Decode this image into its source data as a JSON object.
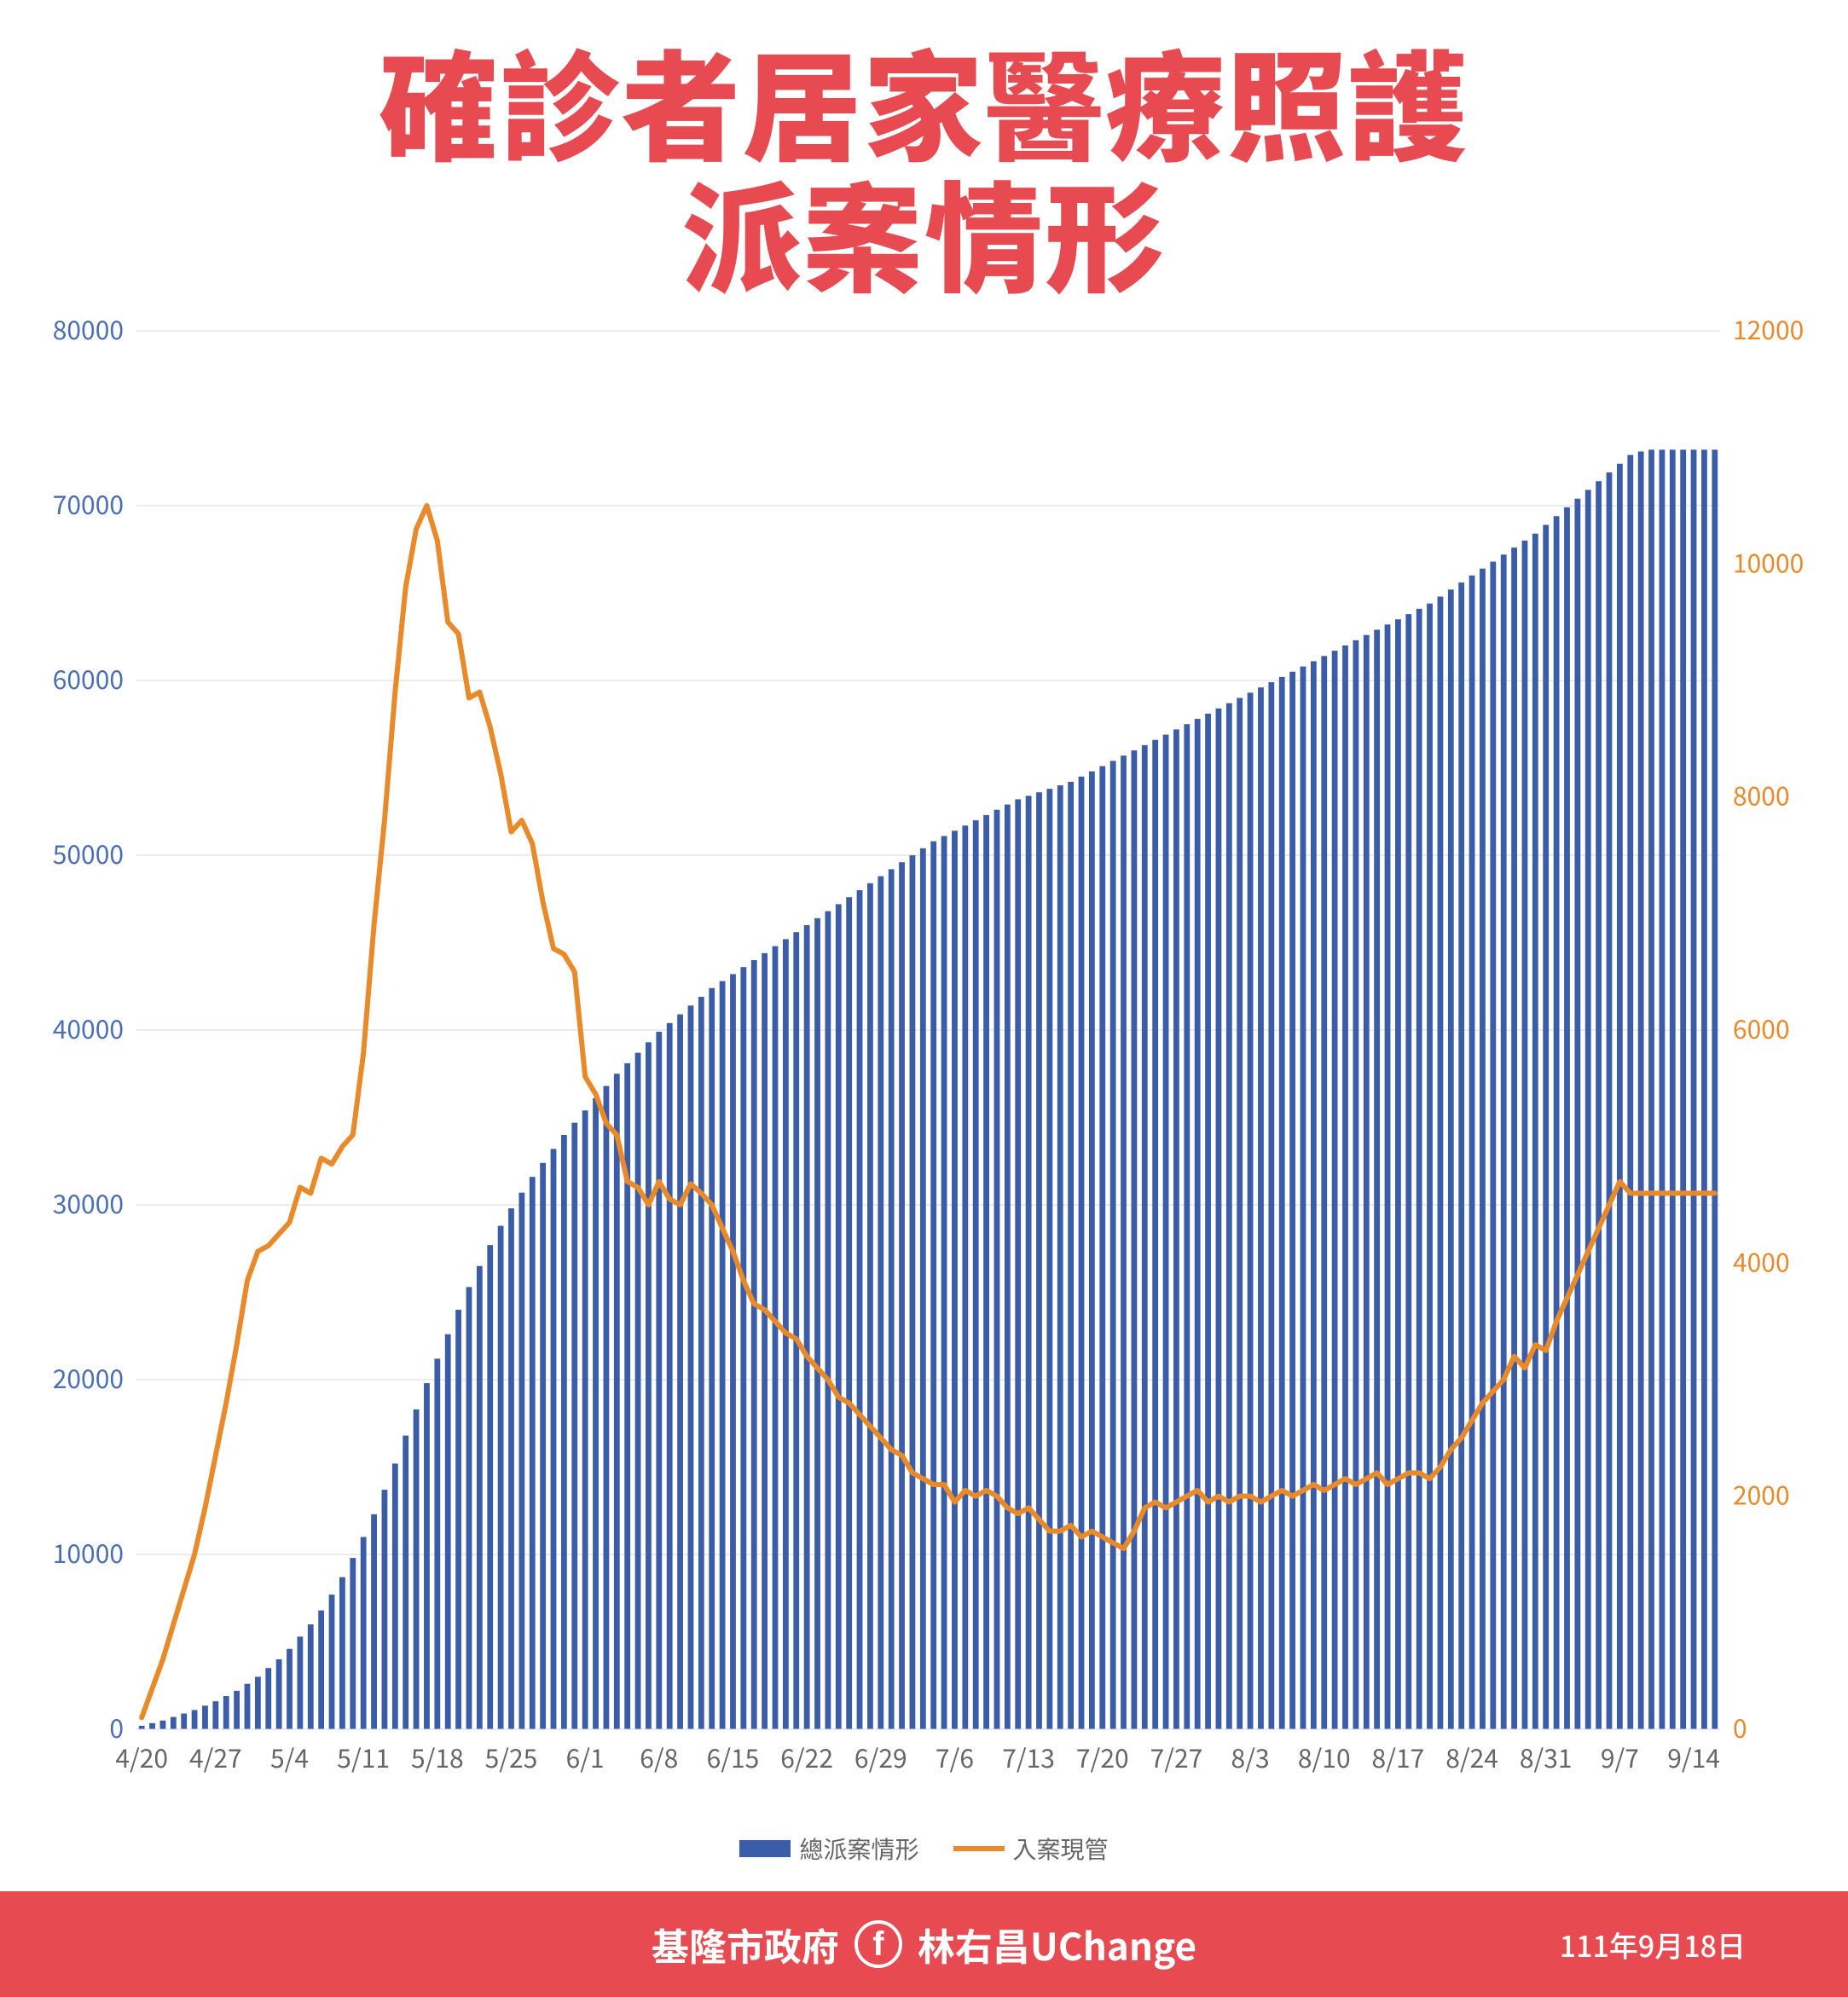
{
  "title_line1": "確診者居家醫療照護",
  "title_line2": "派案情形",
  "title_color": "#e74a51",
  "title_fontsize": 140,
  "chart": {
    "type": "combo-bar-line",
    "background_color": "#ffffff",
    "grid_color": "#d9d9d9",
    "left_axis": {
      "color": "#4a6fb5",
      "min": 0,
      "max": 80000,
      "step": 10000,
      "ticks": [
        0,
        10000,
        20000,
        30000,
        40000,
        50000,
        60000,
        70000,
        80000
      ]
    },
    "right_axis": {
      "color": "#e88a2a",
      "min": 0,
      "max": 12000,
      "step": 2000,
      "ticks": [
        0,
        2000,
        4000,
        6000,
        8000,
        10000,
        12000
      ]
    },
    "x_labels": [
      "4/20",
      "4/27",
      "5/4",
      "5/11",
      "5/18",
      "5/25",
      "6/1",
      "6/8",
      "6/15",
      "6/22",
      "6/29",
      "7/6",
      "7/13",
      "7/20",
      "7/27",
      "8/3",
      "8/10",
      "8/17",
      "8/24",
      "8/31",
      "9/7",
      "9/14"
    ],
    "x_label_color": "#666666",
    "bar_color": "#3b5da8",
    "bar_count": 150,
    "bar_values_sample": [
      200,
      350,
      500,
      700,
      900,
      1100,
      1350,
      1600,
      1900,
      2200,
      2600,
      3000,
      3500,
      4000,
      4600,
      5300,
      6000,
      6800,
      7700,
      8700,
      9800,
      11000,
      12300,
      13700,
      15200,
      16800,
      18300,
      19800,
      21200,
      22600,
      24000,
      25300,
      26500,
      27700,
      28800,
      29800,
      30700,
      31600,
      32400,
      33200,
      34000,
      34700,
      35400,
      36100,
      36800,
      37500,
      38100,
      38700,
      39300,
      39900,
      40400,
      40900,
      41400,
      41900,
      42400,
      42800,
      43200,
      43600,
      44000,
      44400,
      44800,
      45200,
      45600,
      46000,
      46400,
      46800,
      47200,
      47600,
      48000,
      48400,
      48800,
      49200,
      49600,
      50000,
      50400,
      50800,
      51100,
      51400,
      51700,
      52000,
      52300,
      52600,
      52900,
      53200,
      53400,
      53600,
      53800,
      54000,
      54200,
      54500,
      54800,
      55100,
      55400,
      55700,
      56000,
      56300,
      56600,
      56900,
      57200,
      57500,
      57800,
      58100,
      58400,
      58700,
      59000,
      59300,
      59600,
      59900,
      60200,
      60500,
      60800,
      61100,
      61400,
      61700,
      62000,
      62300,
      62600,
      62900,
      63200,
      63500,
      63800,
      64100,
      64400,
      64800,
      65200,
      65600,
      66000,
      66400,
      66800,
      67200,
      67600,
      68000,
      68400,
      68900,
      69400,
      69900,
      70400,
      70900,
      71400,
      71900,
      72400,
      72900,
      73100,
      73200,
      73200,
      73200,
      73200,
      73200,
      73200,
      73200
    ],
    "line_color": "#e88a2a",
    "line_width": 6,
    "line_values": [
      100,
      350,
      600,
      900,
      1200,
      1500,
      1900,
      2350,
      2800,
      3300,
      3850,
      4100,
      4150,
      4250,
      4350,
      4650,
      4600,
      4900,
      4850,
      5000,
      5100,
      5800,
      6900,
      7800,
      8900,
      9800,
      10300,
      10500,
      10200,
      9500,
      9400,
      8850,
      8900,
      8600,
      8200,
      7700,
      7800,
      7600,
      7100,
      6700,
      6650,
      6500,
      5600,
      5450,
      5200,
      5100,
      4700,
      4650,
      4500,
      4700,
      4550,
      4500,
      4680,
      4600,
      4500,
      4300,
      4100,
      3850,
      3650,
      3600,
      3500,
      3400,
      3350,
      3200,
      3100,
      3000,
      2850,
      2800,
      2700,
      2600,
      2500,
      2400,
      2350,
      2200,
      2150,
      2100,
      2100,
      1950,
      2050,
      2000,
      2050,
      2000,
      1900,
      1850,
      1900,
      1800,
      1700,
      1700,
      1750,
      1650,
      1700,
      1650,
      1600,
      1550,
      1700,
      1900,
      1950,
      1900,
      1950,
      2000,
      2050,
      1950,
      2000,
      1950,
      2000,
      2000,
      1950,
      2000,
      2050,
      2000,
      2050,
      2100,
      2050,
      2100,
      2150,
      2100,
      2150,
      2200,
      2100,
      2150,
      2200,
      2200,
      2150,
      2250,
      2400,
      2500,
      2650,
      2800,
      2900,
      3000,
      3200,
      3100,
      3300,
      3250,
      3500,
      3700,
      3900,
      4100,
      4300,
      4500,
      4700,
      4600,
      4600,
      4600,
      4600,
      4600,
      4600,
      4600,
      4600,
      4600
    ]
  },
  "legend": {
    "items": [
      {
        "type": "bar",
        "color": "#3b5da8",
        "label": "總派案情形"
      },
      {
        "type": "line",
        "color": "#e88a2a",
        "label": "入案現管"
      }
    ],
    "text_color": "#666666"
  },
  "footer": {
    "background_color": "#e74a51",
    "gov_label": "基隆市政府",
    "person_label": "林右昌UChange",
    "date_label": "111年9月18日"
  }
}
